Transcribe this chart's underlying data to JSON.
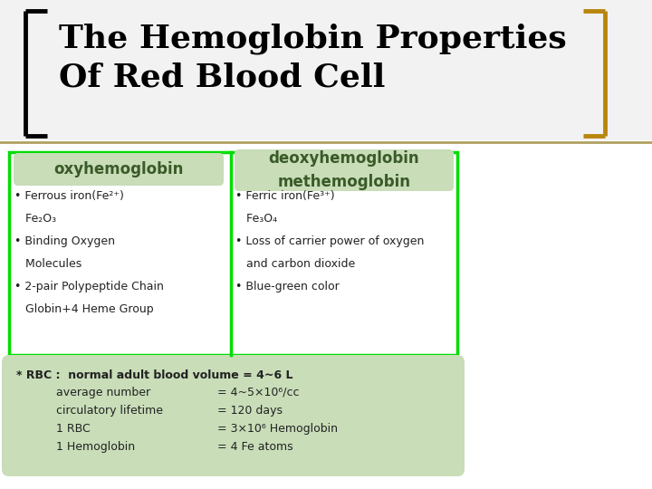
{
  "title_line1": "The Hemoglobin Properties",
  "title_line2": "Of Red Blood Cell",
  "title_color": "#000000",
  "title_fontsize": 26,
  "bg_color": "#ffffff",
  "bracket_color_left": "#000000",
  "bracket_color_right": "#b8860b",
  "green_box_color": "#00dd00",
  "light_green_fill": "#c8e6c0",
  "header_green_fill": "#c8ddb8",
  "col1_header": "oxyhemoglobin",
  "col2_header": "deoxyhemoglobin\nmethemoglobin",
  "col1_bullets": [
    "• Ferrous iron(Fe²⁺)",
    "   Fe₂O₃",
    "• Binding Oxygen",
    "   Molecules",
    "• 2-pair Polypeptide Chain",
    "   Globin+4 Heme Group"
  ],
  "col2_bullets": [
    "• Ferric iron(Fe³⁺)",
    "   Fe₃O₄",
    "• Loss of carrier power of oxygen",
    "   and carbon dioxide",
    "• Blue-green color"
  ],
  "rbc_text": "* RBC :  normal adult blood volume = 4~6 L",
  "rbc_indent_lines": [
    [
      "average number",
      "= 4~5×10⁶/cc"
    ],
    [
      "circulatory lifetime",
      "= 120 days"
    ],
    [
      "1 RBC",
      "= 3×10⁶ Hemoglobin"
    ],
    [
      "1 Hemoglobin",
      "= 4 Fe atoms"
    ]
  ],
  "text_color": "#222222",
  "header_text_color": "#3a5a28",
  "bullet_fontsize": 9,
  "header_fontsize": 12,
  "title_area_bg": "#f2f2f2",
  "separator_color": "#b0a060",
  "rbc_box_color": "#c8ddb8"
}
